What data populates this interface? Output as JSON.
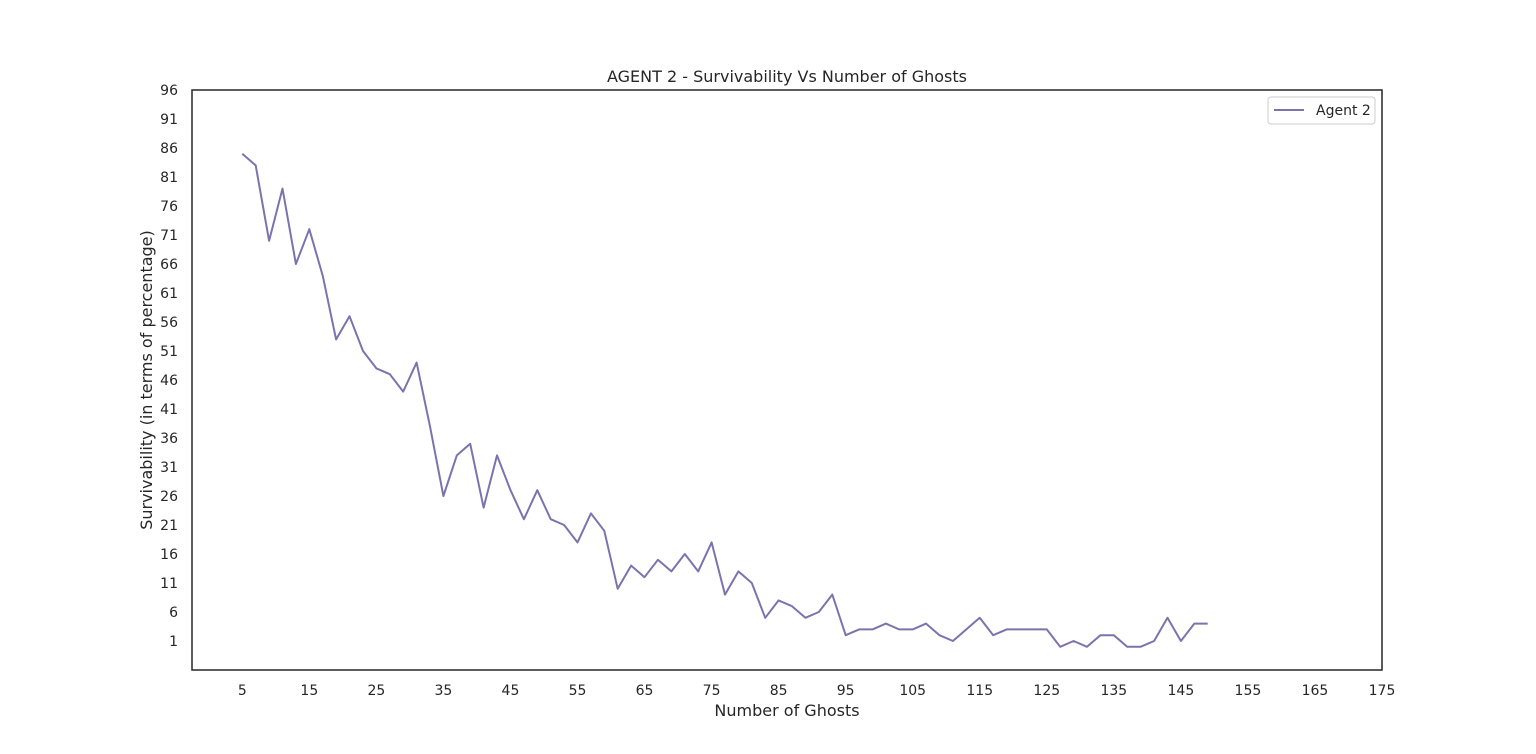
{
  "chart_data": {
    "type": "line",
    "title": "AGENT 2 - Survivability Vs Number of Ghosts",
    "xlabel": "Number of Ghosts",
    "ylabel": "Survivability (in terms of percentage)",
    "xlim": [
      -2.5,
      175
    ],
    "ylim": [
      -4,
      96
    ],
    "xticks": [
      5,
      15,
      25,
      35,
      45,
      55,
      65,
      75,
      85,
      95,
      105,
      115,
      125,
      135,
      145,
      155,
      165,
      175
    ],
    "yticks": [
      1,
      6,
      11,
      16,
      21,
      26,
      31,
      36,
      41,
      46,
      51,
      56,
      61,
      66,
      71,
      76,
      81,
      86,
      91,
      96
    ],
    "grid": false,
    "legend_position": "top-right",
    "series": [
      {
        "name": "Agent 2",
        "color": "#7e72ae",
        "x": [
          5,
          7,
          9,
          11,
          13,
          15,
          17,
          19,
          21,
          23,
          25,
          27,
          29,
          31,
          33,
          35,
          37,
          39,
          41,
          43,
          45,
          47,
          49,
          51,
          53,
          55,
          57,
          59,
          61,
          63,
          65,
          67,
          69,
          71,
          73,
          75,
          77,
          79,
          81,
          83,
          85,
          87,
          89,
          91,
          93,
          95,
          97,
          99,
          101,
          103,
          105,
          107,
          109,
          111,
          113,
          115,
          117,
          119,
          121,
          123,
          125,
          127,
          129,
          131,
          133,
          135,
          137,
          139,
          141,
          143,
          145,
          147,
          149
        ],
        "values": [
          85,
          83,
          70,
          79,
          66,
          72,
          64,
          53,
          57,
          51,
          48,
          47,
          44,
          49,
          38,
          26,
          33,
          35,
          24,
          33,
          27,
          22,
          27,
          22,
          21,
          18,
          23,
          20,
          10,
          14,
          12,
          15,
          13,
          16,
          13,
          18,
          9,
          13,
          11,
          5,
          8,
          7,
          5,
          6,
          9,
          2,
          3,
          3,
          4,
          3,
          3,
          4,
          2,
          1,
          3,
          5,
          2,
          3,
          3,
          3,
          3,
          0,
          1,
          0,
          2,
          2,
          0,
          0,
          1,
          5,
          1,
          4,
          4
        ]
      }
    ]
  }
}
